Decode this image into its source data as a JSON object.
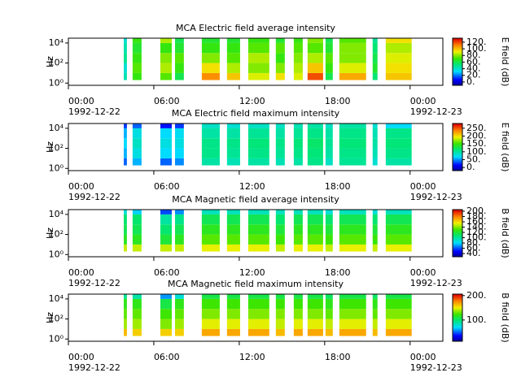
{
  "chart_data": [
    {
      "type": "spectrogram",
      "title": "MCA  Electric field average intensity",
      "ylabel": "Hz",
      "zlabel": "E field (dB)",
      "xlim": [
        0,
        26.3
      ],
      "xticks": [
        {
          "value": 0,
          "label": "00:00",
          "date": "1992-12-22"
        },
        {
          "value": 6,
          "label": "06:00"
        },
        {
          "value": 12,
          "label": "12:00"
        },
        {
          "value": 18,
          "label": "18:00"
        },
        {
          "value": 24,
          "label": "00:00",
          "date": "1992-12-23"
        }
      ],
      "ylim": [
        0.6,
        30000
      ],
      "log_y": true,
      "yticks": [
        {
          "value": 1,
          "label": "10⁰"
        },
        {
          "value": 100,
          "label": "10²"
        },
        {
          "value": 10000,
          "label": "10⁴"
        }
      ],
      "y_bins": [
        2,
        10,
        100,
        1000,
        10000,
        30000
      ],
      "zlim": [
        -10,
        132
      ],
      "zticks": [
        {
          "value": 0,
          "label": "0."
        },
        {
          "value": 20,
          "label": "20."
        },
        {
          "value": 40,
          "label": "40."
        },
        {
          "value": 60,
          "label": "60."
        },
        {
          "value": 80,
          "label": "80."
        },
        {
          "value": 100,
          "label": "100."
        },
        {
          "value": 120,
          "label": "120."
        }
      ],
      "x_segments": [
        [
          3.89,
          4.11
        ],
        [
          4.51,
          5.14
        ],
        [
          6.46,
          7.26
        ],
        [
          7.49,
          8.11
        ],
        [
          9.37,
          10.63
        ],
        [
          11.14,
          12.06
        ],
        [
          12.63,
          14.11
        ],
        [
          14.57,
          15.2
        ],
        [
          15.83,
          16.46
        ],
        [
          16.8,
          17.89
        ],
        [
          18.06,
          18.57
        ],
        [
          19.03,
          20.91
        ],
        [
          21.37,
          21.71
        ],
        [
          22.29,
          24.11
        ]
      ],
      "values": [
        [
          45,
          40,
          50,
          45,
          40
        ],
        [
          70,
          75,
          70,
          65,
          70
        ],
        [
          75,
          85,
          80,
          70,
          85
        ],
        [
          60,
          70,
          75,
          65,
          60
        ],
        [
          110,
          95,
          80,
          70,
          65
        ],
        [
          100,
          85,
          75,
          70,
          65
        ],
        [
          90,
          80,
          85,
          75,
          70
        ],
        [
          95,
          80,
          70,
          75,
          65
        ],
        [
          90,
          85,
          80,
          75,
          70
        ],
        [
          120,
          100,
          85,
          75,
          80
        ],
        [
          60,
          70,
          75,
          65,
          60
        ],
        [
          105,
          90,
          80,
          80,
          75
        ],
        [
          55,
          65,
          60,
          55,
          50
        ],
        [
          100,
          95,
          90,
          85,
          95
        ]
      ]
    },
    {
      "type": "spectrogram",
      "title": "MCA  Electric field maximum intensity",
      "ylabel": "Hz",
      "zlabel": "E field (dB)",
      "xlim": [
        0,
        26.3
      ],
      "xticks": [
        {
          "value": 0,
          "label": "00:00",
          "date": "1992-12-22"
        },
        {
          "value": 6,
          "label": "06:00"
        },
        {
          "value": 12,
          "label": "12:00"
        },
        {
          "value": 18,
          "label": "18:00"
        },
        {
          "value": 24,
          "label": "00:00",
          "date": "1992-12-23"
        }
      ],
      "ylim": [
        0.6,
        30000
      ],
      "log_y": true,
      "yticks": [
        {
          "value": 1,
          "label": "10⁰"
        },
        {
          "value": 100,
          "label": "10²"
        },
        {
          "value": 10000,
          "label": "10⁴"
        }
      ],
      "y_bins": [
        2,
        10,
        100,
        1000,
        10000,
        30000
      ],
      "zlim": [
        -20,
        280
      ],
      "zticks": [
        {
          "value": 0,
          "label": "0."
        },
        {
          "value": 50,
          "label": "50."
        },
        {
          "value": 100,
          "label": "100."
        },
        {
          "value": 150,
          "label": "150."
        },
        {
          "value": 200,
          "label": "200."
        },
        {
          "value": 250,
          "label": "250."
        }
      ],
      "x_segments": [
        [
          3.89,
          4.11
        ],
        [
          4.51,
          5.14
        ],
        [
          6.46,
          7.26
        ],
        [
          7.49,
          8.11
        ],
        [
          9.37,
          10.63
        ],
        [
          11.14,
          12.06
        ],
        [
          12.63,
          14.11
        ],
        [
          14.57,
          15.2
        ],
        [
          15.83,
          16.46
        ],
        [
          16.8,
          17.89
        ],
        [
          18.06,
          18.57
        ],
        [
          19.03,
          20.91
        ],
        [
          21.37,
          21.71
        ],
        [
          22.29,
          24.11
        ]
      ],
      "values": [
        [
          40,
          60,
          70,
          60,
          30
        ],
        [
          60,
          80,
          90,
          80,
          40
        ],
        [
          40,
          70,
          80,
          70,
          20
        ],
        [
          50,
          70,
          80,
          75,
          30
        ],
        [
          100,
          110,
          110,
          100,
          90
        ],
        [
          95,
          105,
          110,
          100,
          85
        ],
        [
          100,
          110,
          115,
          105,
          90
        ],
        [
          95,
          105,
          110,
          100,
          90
        ],
        [
          100,
          110,
          115,
          105,
          95
        ],
        [
          110,
          115,
          120,
          110,
          100
        ],
        [
          90,
          100,
          105,
          100,
          90
        ],
        [
          105,
          110,
          115,
          110,
          100
        ],
        [
          85,
          95,
          100,
          95,
          85
        ],
        [
          100,
          110,
          115,
          110,
          70
        ]
      ]
    },
    {
      "type": "spectrogram",
      "title": "MCA  Magnetic field average intensity",
      "ylabel": "Hz",
      "zlabel": "B field (dB)",
      "xlim": [
        0,
        26.3
      ],
      "xticks": [
        {
          "value": 0,
          "label": "00:00",
          "date": "1992-12-22"
        },
        {
          "value": 6,
          "label": "06:00"
        },
        {
          "value": 12,
          "label": "12:00"
        },
        {
          "value": 18,
          "label": "18:00"
        },
        {
          "value": 24,
          "label": "00:00",
          "date": "1992-12-23"
        }
      ],
      "ylim": [
        0.6,
        30000
      ],
      "log_y": true,
      "yticks": [
        {
          "value": 1,
          "label": "10⁰"
        },
        {
          "value": 100,
          "label": "10²"
        },
        {
          "value": 10000,
          "label": "10⁴"
        }
      ],
      "y_bins": [
        2,
        10,
        100,
        1000,
        10000,
        30000
      ],
      "zlim": [
        28,
        206
      ],
      "zticks": [
        {
          "value": 40,
          "label": "40."
        },
        {
          "value": 60,
          "label": "60."
        },
        {
          "value": 80,
          "label": "80."
        },
        {
          "value": 100,
          "label": "100."
        },
        {
          "value": 120,
          "label": "120."
        },
        {
          "value": 140,
          "label": "140."
        },
        {
          "value": 160,
          "label": "160."
        },
        {
          "value": 180,
          "label": "180."
        },
        {
          "value": 200,
          "label": "200."
        }
      ],
      "x_segments": [
        [
          3.89,
          4.11
        ],
        [
          4.51,
          5.14
        ],
        [
          6.46,
          7.26
        ],
        [
          7.49,
          8.11
        ],
        [
          9.37,
          10.63
        ],
        [
          11.14,
          12.06
        ],
        [
          12.63,
          14.11
        ],
        [
          14.57,
          15.2
        ],
        [
          15.83,
          16.46
        ],
        [
          16.8,
          17.89
        ],
        [
          18.06,
          18.57
        ],
        [
          19.03,
          20.91
        ],
        [
          21.37,
          21.71
        ],
        [
          22.29,
          24.11
        ]
      ],
      "values": [
        [
          150,
          125,
          115,
          110,
          90
        ],
        [
          150,
          125,
          115,
          110,
          80
        ],
        [
          150,
          120,
          110,
          100,
          60
        ],
        [
          150,
          125,
          115,
          105,
          70
        ],
        [
          155,
          135,
          125,
          115,
          95
        ],
        [
          155,
          135,
          125,
          115,
          95
        ],
        [
          155,
          135,
          125,
          115,
          95
        ],
        [
          150,
          130,
          120,
          110,
          95
        ],
        [
          155,
          135,
          125,
          115,
          95
        ],
        [
          155,
          135,
          125,
          115,
          95
        ],
        [
          150,
          130,
          120,
          110,
          90
        ],
        [
          155,
          135,
          125,
          115,
          95
        ],
        [
          150,
          130,
          120,
          110,
          90
        ],
        [
          155,
          135,
          125,
          115,
          95
        ]
      ]
    },
    {
      "type": "spectrogram",
      "title": "MCA  Magnetic field maximum intensity",
      "ylabel": "Hz",
      "zlabel": "B field (dB)",
      "xlim": [
        0,
        26.3
      ],
      "xticks": [
        {
          "value": 0,
          "label": "00:00",
          "date": "1992-12-22"
        },
        {
          "value": 6,
          "label": "06:00"
        },
        {
          "value": 12,
          "label": "12:00"
        },
        {
          "value": 18,
          "label": "18:00"
        },
        {
          "value": 24,
          "label": "00:00",
          "date": "1992-12-23"
        }
      ],
      "ylim": [
        0.6,
        30000
      ],
      "log_y": true,
      "yticks": [
        {
          "value": 1,
          "label": "10⁰"
        },
        {
          "value": 100,
          "label": "10²"
        },
        {
          "value": 10000,
          "label": "10⁴"
        }
      ],
      "y_bins": [
        2,
        10,
        100,
        1000,
        10000,
        30000
      ],
      "zlim": [
        13,
        206
      ],
      "zticks": [
        {
          "value": 100,
          "label": "100."
        },
        {
          "value": 200,
          "label": "200."
        }
      ],
      "x_segments": [
        [
          3.89,
          4.11
        ],
        [
          4.51,
          5.14
        ],
        [
          6.46,
          7.26
        ],
        [
          7.49,
          8.11
        ],
        [
          9.37,
          10.63
        ],
        [
          11.14,
          12.06
        ],
        [
          12.63,
          14.11
        ],
        [
          14.57,
          15.2
        ],
        [
          15.83,
          16.46
        ],
        [
          16.8,
          17.89
        ],
        [
          18.06,
          18.57
        ],
        [
          19.03,
          20.91
        ],
        [
          21.37,
          21.71
        ],
        [
          22.29,
          24.11
        ]
      ],
      "values": [
        [
          165,
          140,
          130,
          120,
          95
        ],
        [
          160,
          140,
          130,
          120,
          90
        ],
        [
          160,
          135,
          125,
          110,
          60
        ],
        [
          160,
          140,
          130,
          120,
          80
        ],
        [
          170,
          150,
          135,
          125,
          110
        ],
        [
          170,
          150,
          135,
          125,
          110
        ],
        [
          170,
          150,
          135,
          125,
          110
        ],
        [
          165,
          145,
          135,
          125,
          110
        ],
        [
          170,
          150,
          135,
          125,
          110
        ],
        [
          170,
          150,
          135,
          125,
          110
        ],
        [
          165,
          145,
          130,
          120,
          105
        ],
        [
          170,
          150,
          135,
          125,
          110
        ],
        [
          165,
          145,
          130,
          120,
          105
        ],
        [
          170,
          150,
          135,
          125,
          110
        ]
      ]
    }
  ]
}
